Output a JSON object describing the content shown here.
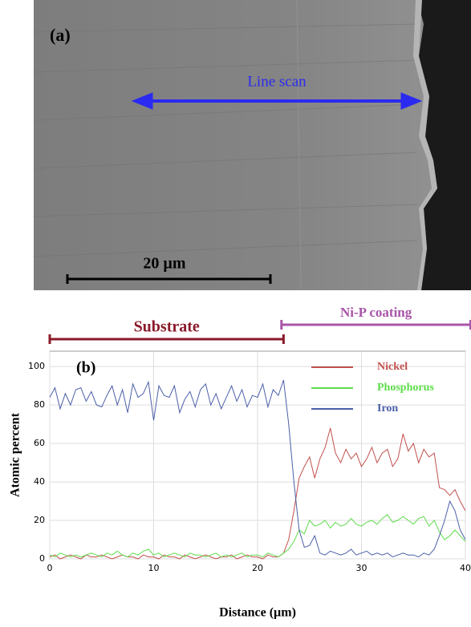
{
  "image_labels": {
    "panel": "(a)",
    "line_scan": "Line scan",
    "scale_bar": "20 µm"
  },
  "chart_data": {
    "type": "line",
    "panel": "(b)",
    "xlabel": "Distance (µm)",
    "ylabel": "Atomic percent",
    "annotations": [
      {
        "text": "Substrate",
        "x0": 0,
        "x1": 22.5,
        "color": "#8b1a2a"
      },
      {
        "text": "Ni-P coating",
        "x0": 22.3,
        "x1": 40.5,
        "color": "#a855a8"
      }
    ],
    "x": [
      0,
      0.5,
      1,
      1.5,
      2,
      2.5,
      3,
      3.5,
      4,
      4.5,
      5,
      5.5,
      6,
      6.5,
      7,
      7.5,
      8,
      8.5,
      9,
      9.5,
      10,
      10.5,
      11,
      11.5,
      12,
      12.5,
      13,
      13.5,
      14,
      14.5,
      15,
      15.5,
      16,
      16.5,
      17,
      17.5,
      18,
      18.5,
      19,
      19.5,
      20,
      20.5,
      21,
      21.5,
      22,
      22.5,
      23,
      23.5,
      24,
      24.5,
      25,
      25.5,
      26,
      26.5,
      27,
      27.5,
      28,
      28.5,
      29,
      29.5,
      30,
      30.5,
      31,
      31.5,
      32,
      32.5,
      33,
      33.5,
      34,
      34.5,
      35,
      35.5,
      36,
      36.5,
      37,
      37.5,
      38,
      38.5,
      39,
      39.5,
      40
    ],
    "series": [
      {
        "name": "Nickel",
        "color": "#c0504d",
        "values": [
          1,
          2,
          0,
          1,
          2,
          1,
          0,
          2,
          1,
          1,
          2,
          1,
          0,
          1,
          2,
          1,
          1,
          0,
          2,
          1,
          1,
          0,
          2,
          1,
          1,
          0,
          2,
          1,
          0,
          1,
          2,
          1,
          0,
          1,
          1,
          2,
          0,
          1,
          2,
          1,
          1,
          0,
          2,
          1,
          1,
          3,
          10,
          25,
          42,
          48,
          53,
          42,
          52,
          58,
          68,
          55,
          50,
          57,
          52,
          55,
          48,
          52,
          58,
          50,
          55,
          57,
          48,
          52,
          65,
          56,
          60,
          50,
          57,
          53,
          55,
          37,
          36,
          33,
          36,
          30,
          25
        ]
      },
      {
        "name": "Phosphorus",
        "color": "#5ddc4a",
        "values": [
          2,
          1,
          3,
          2,
          1,
          2,
          1,
          2,
          3,
          2,
          1,
          3,
          2,
          4,
          2,
          1,
          3,
          2,
          4,
          5,
          2,
          3,
          1,
          2,
          3,
          2,
          1,
          3,
          2,
          2,
          1,
          2,
          3,
          1,
          2,
          1,
          2,
          3,
          1,
          2,
          2,
          1,
          3,
          2,
          1,
          3,
          5,
          9,
          15,
          13,
          20,
          17,
          18,
          20,
          16,
          19,
          17,
          18,
          21,
          18,
          17,
          19,
          20,
          18,
          21,
          23,
          19,
          20,
          22,
          20,
          18,
          21,
          22,
          17,
          20,
          14,
          10,
          12,
          15,
          12,
          9
        ]
      },
      {
        "name": "Iron",
        "color": "#4b5fa8",
        "values": [
          84,
          89,
          78,
          86,
          80,
          88,
          89,
          82,
          87,
          80,
          79,
          85,
          90,
          80,
          88,
          76,
          91,
          84,
          86,
          92,
          72,
          90,
          85,
          84,
          90,
          76,
          83,
          87,
          79,
          88,
          91,
          80,
          86,
          78,
          84,
          90,
          82,
          88,
          79,
          85,
          84,
          91,
          79,
          88,
          85,
          93,
          70,
          40,
          15,
          6,
          7,
          12,
          3,
          2,
          4,
          3,
          2,
          3,
          5,
          2,
          3,
          4,
          2,
          3,
          2,
          3,
          1,
          2,
          3,
          2,
          2,
          1,
          3,
          2,
          5,
          12,
          20,
          30,
          25,
          15,
          10
        ]
      }
    ],
    "xlim": [
      0,
      40
    ],
    "xticks": [
      0,
      10,
      20,
      30,
      40
    ],
    "ylim": [
      0,
      108
    ],
    "yticks": [
      0,
      20,
      40,
      60,
      80,
      100
    ],
    "grid": true
  }
}
